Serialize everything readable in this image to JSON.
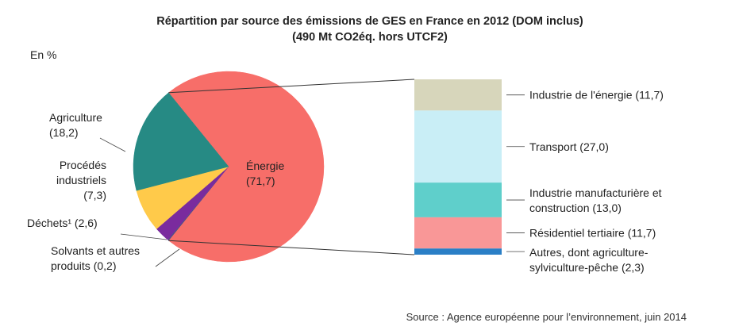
{
  "chart_data": {
    "type": "pie",
    "title": "Répartition par source des émissions de GES en France en 2012 (DOM inclus)",
    "subtitle": "(490 Mt CO2éq. hors UTCF2)",
    "unit_label": "En %",
    "pie": {
      "slices": [
        {
          "label": "Énergie",
          "label_line1": "Énergie",
          "label_line2": "(71,7)",
          "value": 71.7,
          "color": "#f76e69"
        },
        {
          "label": "Solvants et autres produits",
          "label_line1": "Solvants et autres",
          "label_line2": "produits (0,2)",
          "value": 0.2,
          "color": "#4f4f87"
        },
        {
          "label": "Déchets",
          "label_line1": "Déchets¹ (2,6)",
          "value": 2.6,
          "color": "#7a2b9e"
        },
        {
          "label": "Procédés industriels",
          "label_line1": "Procédés",
          "label_line2": "industriels",
          "label_line3": "(7,3)",
          "value": 7.3,
          "color": "#ffca4a"
        },
        {
          "label": "Agriculture",
          "label_line1": "Agriculture",
          "label_line2": "(18,2)",
          "value": 18.2,
          "color": "#268a84"
        }
      ]
    },
    "breakdown": {
      "parent": "Énergie",
      "segments": [
        {
          "label": "Industrie de l'énergie",
          "label_line1": "Industrie de l'énergie (11,7)",
          "value": 11.7,
          "color": "#d7d6bb"
        },
        {
          "label": "Transport",
          "label_line1": "Transport (27,0)",
          "value": 27.0,
          "color": "#c9eef6"
        },
        {
          "label": "Industrie manufacturière et construction",
          "label_line1": "Industrie manufacturière et",
          "label_line2": "construction (13,0)",
          "value": 13.0,
          "color": "#5fcfcb"
        },
        {
          "label": "Résidentiel tertiaire",
          "label_line1": "Résidentiel tertiaire (11,7)",
          "value": 11.7,
          "color": "#f99797"
        },
        {
          "label": "Autres, dont agriculture-sylviculture-pêche",
          "label_line1": "Autres, dont agriculture-",
          "label_line2": "sylviculture-pêche (2,3)",
          "value": 2.3,
          "color": "#2a7fc6"
        }
      ]
    },
    "source": "Source : Agence européenne pour l’environnement, juin 2014"
  }
}
